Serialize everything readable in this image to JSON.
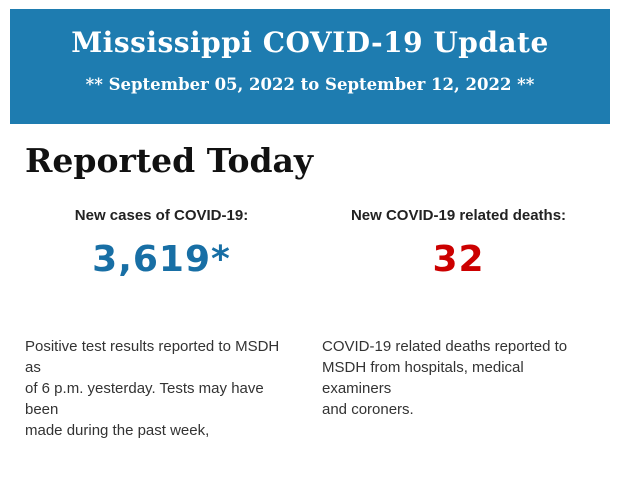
{
  "colors": {
    "banner_bg": "#1e7cb0",
    "banner_text": "#ffffff",
    "cases_value": "#186fa5",
    "deaths_value": "#cc0000"
  },
  "banner": {
    "title": "Mississippi COVID-19 Update",
    "subtitle": "** September 05, 2022 to September 12, 2022 **"
  },
  "section": {
    "heading": "Reported Today"
  },
  "stats": {
    "cases": {
      "label": "New cases of COVID-19:",
      "value": "3,619*",
      "description_lines": [
        "Positive test results reported to MSDH as",
        "of 6 p.m. yesterday. Tests may have been",
        "made during the past week,"
      ]
    },
    "deaths": {
      "label": "New COVID-19 related deaths:",
      "value": "32",
      "description_lines": [
        "COVID-19 related deaths reported to",
        "MSDH from hospitals, medical examiners",
        "and coroners."
      ]
    }
  }
}
